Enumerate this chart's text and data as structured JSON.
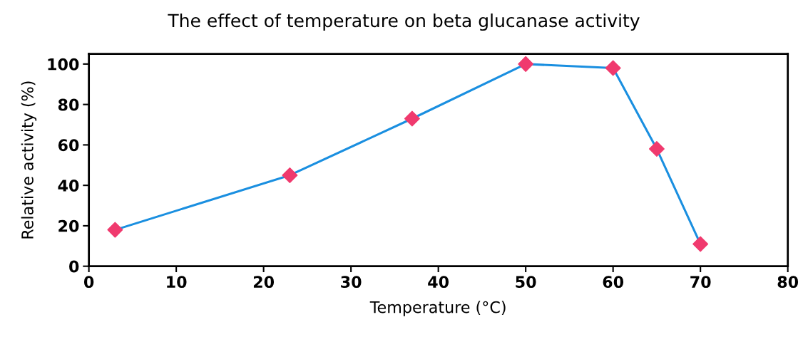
{
  "chart_data": {
    "type": "line",
    "title": "The effect of temperature on beta glucanase activity",
    "xlabel": "Temperature (°C)",
    "ylabel": "Relative activity (%)",
    "x": [
      3,
      23,
      37,
      50,
      60,
      65,
      70
    ],
    "series": [
      {
        "color": "#1a8fe0",
        "colors": [
          "#f03a6e",
          "#f03a6e",
          "#f03a6e",
          "#f03a6e",
          "#f03a6e",
          "#f03a6e",
          "#f03a6e"
        ],
        "values": [
          18,
          45,
          73,
          100,
          98,
          58,
          11
        ]
      }
    ],
    "marker": "diamond",
    "line_style": "solid",
    "legend": false,
    "xlim": [
      0,
      80
    ],
    "xticks": [
      0,
      10,
      20,
      30,
      40,
      50,
      60,
      70,
      80
    ],
    "ylim": [
      0,
      105
    ],
    "yticks": [
      0,
      20,
      40,
      60,
      80,
      100
    ],
    "grid": false
  }
}
